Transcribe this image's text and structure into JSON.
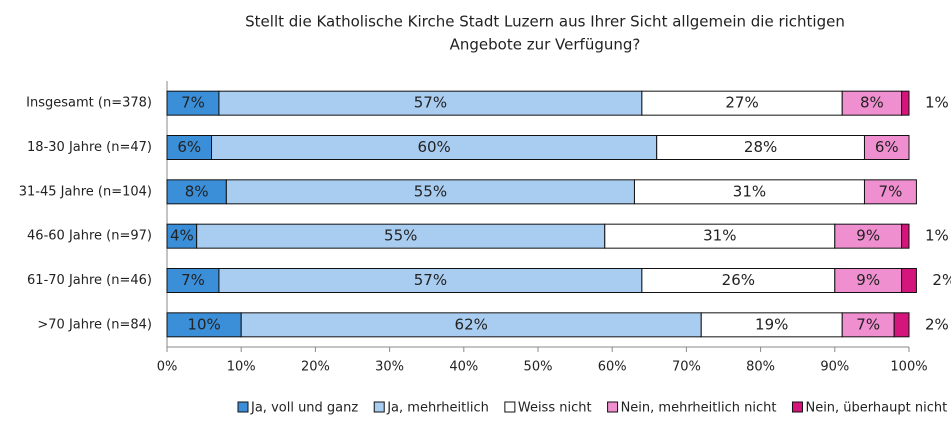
{
  "chart_data": {
    "type": "stacked_bar_horizontal",
    "title": [
      "Stellt die Katholische Kirche Stadt Luzern aus Ihrer Sicht allgemein die richtigen",
      "Angebote zur Verfügung?"
    ],
    "categories": [
      "Insgesamt (n=378)",
      "18-30  Jahre (n=47)",
      "31-45 Jahre (n=104)",
      "46-60 Jahre (n=97)",
      "61-70 Jahre (n=46)",
      ">70 Jahre (n=84)"
    ],
    "series": [
      {
        "name": "Ja, voll und ganz",
        "color": "#3b8fd9",
        "values": [
          7,
          6,
          8,
          4,
          7,
          10
        ],
        "value_labels": [
          "7%",
          "6%",
          "8%",
          "4%",
          "7%",
          "10%"
        ]
      },
      {
        "name": "Ja, mehrheitlich",
        "color": "#a9cdf1",
        "values": [
          57,
          60,
          55,
          55,
          57,
          62
        ],
        "value_labels": [
          "57%",
          "60%",
          "55%",
          "55%",
          "57%",
          "62%"
        ]
      },
      {
        "name": "Weiss nicht",
        "color": "#ffffff",
        "values": [
          27,
          28,
          31,
          31,
          26,
          19
        ],
        "value_labels": [
          "27%",
          "28%",
          "31%",
          "31%",
          "26%",
          "19%"
        ]
      },
      {
        "name": "Nein, mehrheitlich nicht",
        "color": "#ef8fcf",
        "values": [
          8,
          6,
          7,
          9,
          9,
          7
        ],
        "value_labels": [
          "8%",
          "6%",
          "7%",
          "9%",
          "9%",
          "7%"
        ]
      },
      {
        "name": "Nein, überhaupt nicht",
        "color": "#d4157c",
        "values": [
          1,
          0,
          0,
          1,
          2,
          2
        ],
        "value_labels": [
          "1%",
          null,
          null,
          "1%",
          "2%",
          "2%"
        ]
      }
    ],
    "xlim": [
      0,
      100
    ],
    "xticks": [
      {
        "value": 0,
        "label": "0%"
      },
      {
        "value": 10,
        "label": "10%"
      },
      {
        "value": 20,
        "label": "20%"
      },
      {
        "value": 30,
        "label": "30%"
      },
      {
        "value": 40,
        "label": "40%"
      },
      {
        "value": 50,
        "label": "50%"
      },
      {
        "value": 60,
        "label": "60%"
      },
      {
        "value": 70,
        "label": "70%"
      },
      {
        "value": 80,
        "label": "80%"
      },
      {
        "value": 90,
        "label": "90%"
      },
      {
        "value": 100,
        "label": "100%"
      }
    ],
    "legend": "bottom"
  }
}
